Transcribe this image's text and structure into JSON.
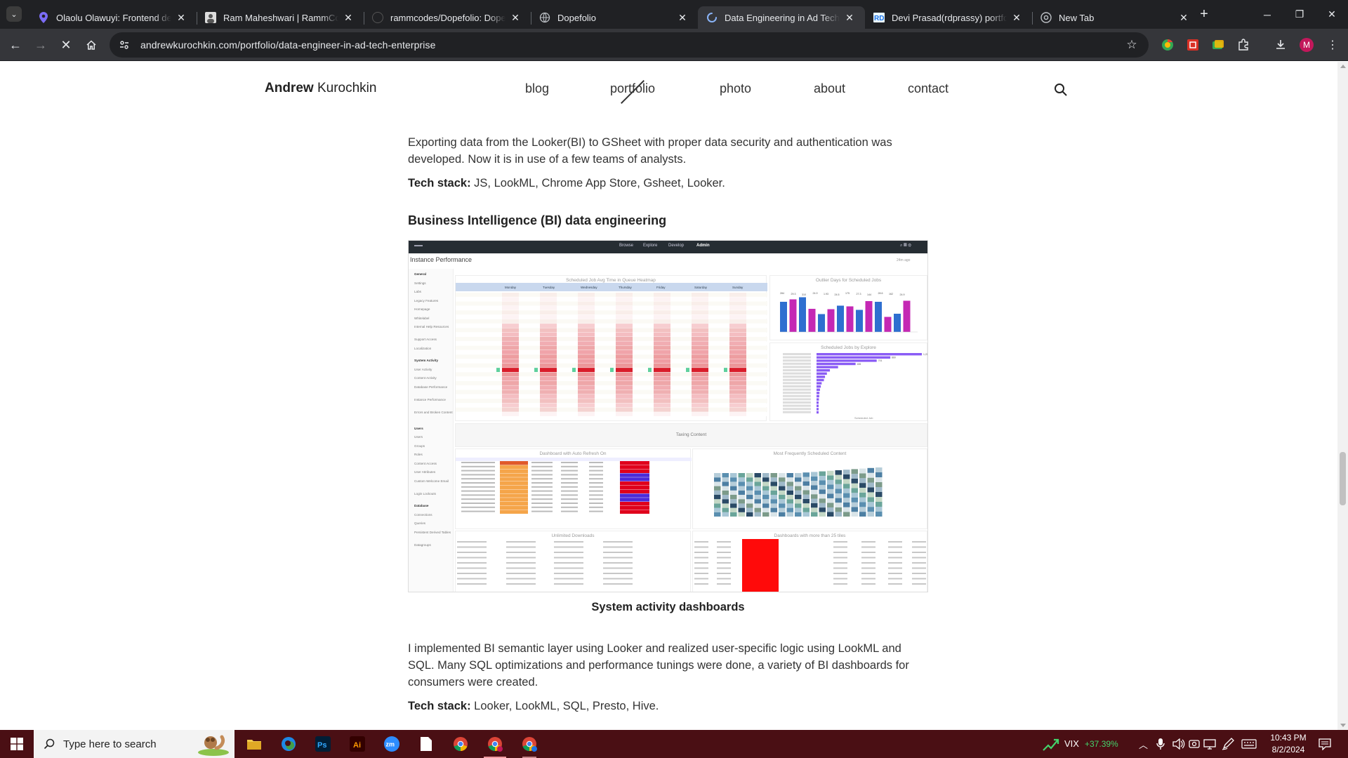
{
  "browser": {
    "tabs": [
      {
        "title": "Olaolu Olawuyi: Frontend deve",
        "active": false
      },
      {
        "title": "Ram Maheshwari | RammCodes",
        "active": false
      },
      {
        "title": "rammcodes/Dopefolio: Dopefol",
        "active": false
      },
      {
        "title": "Dopefolio",
        "active": false
      },
      {
        "title": "Data Engineering in Ad Tech en",
        "active": true
      },
      {
        "title": "Devi Prasad(rdprassy) portfolio",
        "active": false
      },
      {
        "title": "New Tab",
        "active": false
      }
    ],
    "url": "andrewkurochkin.com/portfolio/data-engineer-in-ad-tech-enterprise",
    "profile_initial": "M"
  },
  "site": {
    "brand_first": "Andrew",
    "brand_last": "Kurochkin",
    "nav": [
      "blog",
      "portfolio",
      "photo",
      "about",
      "contact"
    ],
    "active_nav": "portfolio"
  },
  "article": {
    "intro_paragraph": "Exporting data from the Looker(BI) to GSheet with proper data security and authentication was developed. Now it is in use of a few teams of analysts.",
    "intro_stack_label": "Tech stack:",
    "intro_stack_value": " JS, LookML, Chrome App Store, Gsheet, Looker.",
    "section_title": "Business Intelligence (BI) data engineering",
    "figure_caption": "System activity dashboards",
    "bi_paragraph": "I implemented BI semantic layer using Looker and realized user-specific logic using LookML and SQL. Many SQL optimizations and performance tunings were done, a variety of BI dashboards for consumers were created.",
    "bi_stack_label": "Tech stack:",
    "bi_stack_value": " Looker, LookML, SQL, Presto, Hive."
  },
  "dashboard": {
    "page_title": "Instance Performance",
    "top_menu": [
      "Browse",
      "Explore",
      "Develop",
      "Admin"
    ],
    "top_right": "24m ago",
    "panel_heatmap": "Scheduled Job Avg Time in Queue Heatmap",
    "panel_outlier": "Outlier Days for Scheduled Jobs",
    "panel_by_explore": "Scheduled Jobs by Explore",
    "by_explore_axis": "Scheduled Job",
    "section_taxing": "Taxing Content",
    "panel_auto_refresh": "Dashboard with Auto Refresh On",
    "panel_most_scheduled": "Most Frequently Scheduled Content",
    "panel_unlimited": "Unlimited Downloads",
    "panel_25_tiles": "Dashboards with more than 25 tiles",
    "heatmap_days": [
      "Monday",
      "Tuesday",
      "Wednesday",
      "Thursday",
      "Friday",
      "Saturday",
      "Sunday"
    ],
    "sidebar": [
      {
        "label": "General",
        "head": true
      },
      {
        "label": "Settings",
        "head": false
      },
      {
        "label": "Labs",
        "head": false
      },
      {
        "label": "Legacy Features",
        "head": false
      },
      {
        "label": "Homepage",
        "head": false
      },
      {
        "label": "Whitelabel",
        "head": false
      },
      {
        "label": "Internal Help Resources",
        "head": false
      },
      {
        "label": "Support Access",
        "head": false
      },
      {
        "label": "Localization",
        "head": false
      },
      {
        "label": "System Activity",
        "head": true
      },
      {
        "label": "User Activity",
        "head": false
      },
      {
        "label": "Content Activity",
        "head": false
      },
      {
        "label": "Database Performance",
        "head": false
      },
      {
        "label": "Instance Performance",
        "head": false
      },
      {
        "label": "Errors and Broken Content",
        "head": false
      },
      {
        "label": "Users",
        "head": true
      },
      {
        "label": "Users",
        "head": false
      },
      {
        "label": "Groups",
        "head": false
      },
      {
        "label": "Roles",
        "head": false
      },
      {
        "label": "Content Access",
        "head": false
      },
      {
        "label": "User Attributes",
        "head": false
      },
      {
        "label": "Custom Welcome Email",
        "head": false
      },
      {
        "label": "Login Lockouts",
        "head": false
      },
      {
        "label": "Database",
        "head": true
      },
      {
        "label": "Connections",
        "head": false
      },
      {
        "label": "Queries",
        "head": false
      },
      {
        "label": "Persistent Derived Tables",
        "head": false
      },
      {
        "label": "Datagroups",
        "head": false
      }
    ],
    "outlier_values": [
      28.6,
      29.3,
      29.9,
      26.6,
      25.1,
      26.5,
      27.5,
      27.3,
      26.3,
      28.8,
      28.6,
      24.3,
      25.2,
      28.9
    ],
    "outlier_labels": [
      "284",
      "29.3",
      "310",
      "24.9",
      "1.93",
      "24.5",
      "175",
      "27.3",
      "144",
      "28.6",
      "162",
      "24.9"
    ],
    "by_explore_values": [
      1227,
      860,
      701,
      455,
      251,
      156,
      121,
      99,
      86,
      60,
      50,
      40,
      34,
      32,
      28,
      20,
      12,
      8,
      5
    ],
    "by_explore_labels": [
      "1,227",
      "860",
      "701",
      "455"
    ]
  },
  "taskbar": {
    "search_placeholder": "Type here to search",
    "ticker": "VIX",
    "ticker_change": "+37.39%",
    "time": "10:43 PM",
    "date": "8/2/2024"
  },
  "colors": {
    "accent_tab_bg": "#35363a",
    "taskbar_bg": "#4a0f14",
    "heat_hot": "#d91c2a",
    "bar_blue": "#2e6fd0",
    "bar_magenta": "#c428b4",
    "bar_purple": "#8a5cf5"
  }
}
